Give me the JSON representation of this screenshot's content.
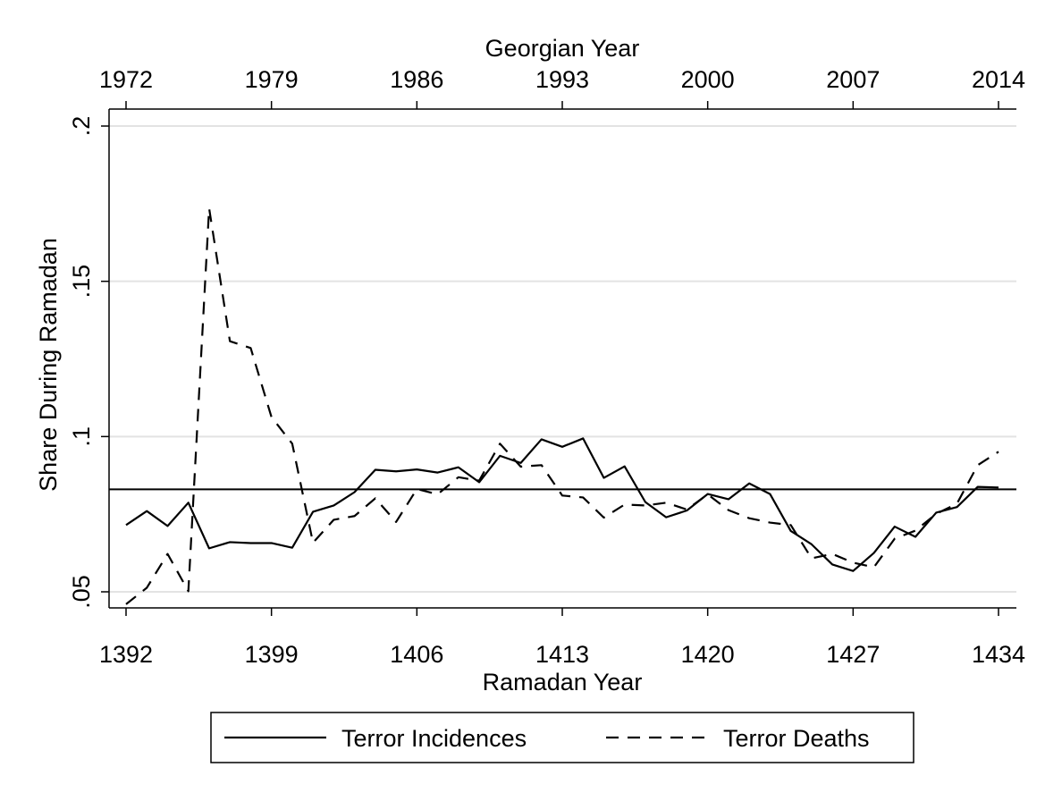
{
  "chart_data": {
    "type": "line",
    "title": "",
    "xlabel": "Ramadan Year",
    "xlabel_top": "Georgian Year",
    "ylabel": "Share During Ramadan",
    "xlim": [
      1392,
      1434
    ],
    "ylim": [
      0.05,
      0.2
    ],
    "x_ticks": [
      1392,
      1399,
      1406,
      1413,
      1420,
      1427,
      1434
    ],
    "x_tick_labels": [
      "1392",
      "1399",
      "1406",
      "1413",
      "1420",
      "1427",
      "1434"
    ],
    "top_ticks": [
      1392,
      1399,
      1406,
      1413,
      1420,
      1427,
      1434
    ],
    "top_tick_labels": [
      "1972",
      "1979",
      "1986",
      "1993",
      "2000",
      "2007",
      "2014"
    ],
    "y_ticks": [
      0.05,
      0.1,
      0.15,
      0.2
    ],
    "y_tick_labels": [
      ".05",
      ".1",
      ".15",
      ".2"
    ],
    "grid": true,
    "reference_line": 0.083,
    "legend_position": "bottom",
    "x": [
      1392,
      1393,
      1394,
      1395,
      1396,
      1397,
      1398,
      1399,
      1400,
      1401,
      1402,
      1403,
      1404,
      1405,
      1406,
      1407,
      1408,
      1409,
      1410,
      1411,
      1412,
      1413,
      1414,
      1415,
      1416,
      1417,
      1418,
      1419,
      1420,
      1421,
      1422,
      1423,
      1424,
      1425,
      1426,
      1427,
      1428,
      1429,
      1430,
      1431,
      1432,
      1433,
      1434
    ],
    "series": [
      {
        "name": "Terror Incidences",
        "style": "solid",
        "values": [
          0.0715,
          0.076,
          0.0712,
          0.0787,
          0.064,
          0.066,
          0.0657,
          0.0657,
          0.0642,
          0.0758,
          0.0778,
          0.0821,
          0.0893,
          0.0888,
          0.0894,
          0.0884,
          0.0901,
          0.0853,
          0.0938,
          0.0915,
          0.0991,
          0.0967,
          0.0994,
          0.0867,
          0.0904,
          0.0789,
          0.074,
          0.0762,
          0.0815,
          0.0798,
          0.0849,
          0.0815,
          0.0696,
          0.0653,
          0.0588,
          0.0567,
          0.0625,
          0.071,
          0.0677,
          0.0755,
          0.0773,
          0.0838,
          0.0836
        ]
      },
      {
        "name": "Terror Deaths",
        "style": "dashed",
        "values": [
          0.046,
          0.0513,
          0.0622,
          0.0502,
          0.1735,
          0.1307,
          0.1285,
          0.1063,
          0.0977,
          0.0658,
          0.0732,
          0.0744,
          0.0801,
          0.0725,
          0.0831,
          0.0814,
          0.0869,
          0.0858,
          0.0977,
          0.0903,
          0.0908,
          0.081,
          0.0804,
          0.0739,
          0.0781,
          0.0778,
          0.0787,
          0.0765,
          0.0814,
          0.0763,
          0.0737,
          0.0723,
          0.0715,
          0.0608,
          0.0622,
          0.0594,
          0.0579,
          0.0671,
          0.0697,
          0.0751,
          0.0784,
          0.0908,
          0.0951
        ]
      }
    ]
  }
}
